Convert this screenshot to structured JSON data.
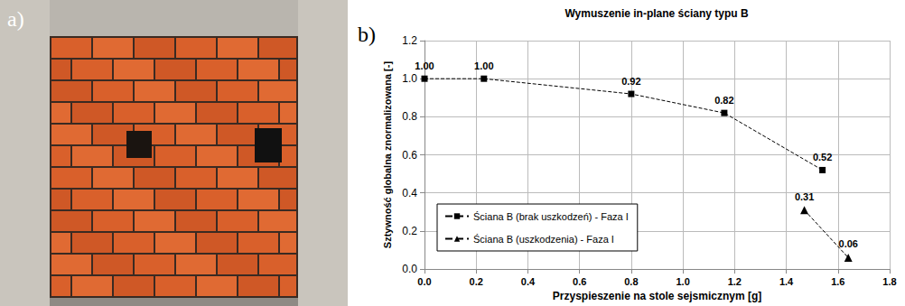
{
  "chart_data": {
    "type": "line",
    "panel_label": "b)",
    "title": "Wymuszenie in-plane ściany typu B",
    "x_label": "Przyspieszenie na stole sejsmicznym [g]",
    "y_label": "Sztywność globalna znormalizowana [-]",
    "xlim": [
      0,
      1.8
    ],
    "xticks": [
      {
        "value": 0,
        "label": "0.0"
      },
      0.2,
      0.4,
      0.6,
      0.8,
      {
        "value": 1,
        "label": "1.0"
      },
      1.2,
      1.4,
      1.6,
      1.8
    ],
    "ylim": [
      0,
      1.2
    ],
    "yticks": [
      {
        "value": 0,
        "label": "0.0"
      },
      0.2,
      0.4,
      0.6,
      0.8,
      {
        "value": 1,
        "label": "1.0"
      },
      1.2
    ],
    "grid": true,
    "legend": "lower left",
    "data_labels": true,
    "series": [
      {
        "name": "Ściana B (brak uszkodzeń) - Faza I",
        "color": "#000000",
        "marker": "square",
        "line_style": "dashed",
        "x": [
          0,
          0.23,
          0.8,
          1.16,
          1.54
        ],
        "values": [
          1.0,
          1.0,
          0.92,
          0.82,
          0.52
        ],
        "value_labels": [
          "1.00",
          "1.00",
          "0.92",
          "0.82",
          "0.52"
        ]
      },
      {
        "name": "Ściana B (uszkodzenia) - Faza I",
        "color": "#000000",
        "marker": "triangle",
        "line_style": "dashed",
        "x": [
          1.47,
          1.64
        ],
        "values": [
          0.31,
          0.06
        ],
        "value_labels": [
          "0.31",
          "0.06"
        ]
      }
    ]
  },
  "photo": {
    "panel_label": "a)"
  }
}
